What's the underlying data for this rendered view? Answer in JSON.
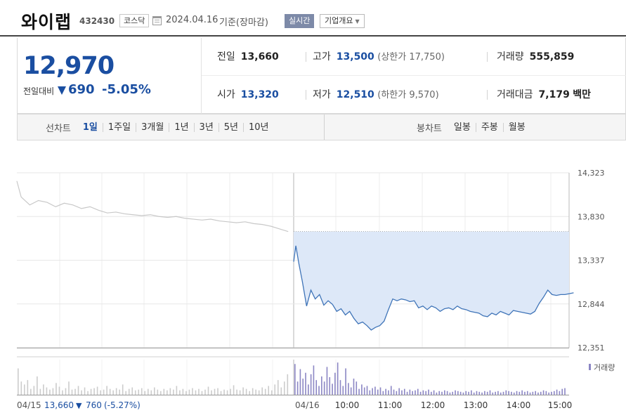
{
  "header": {
    "stock_name": "와이랩",
    "stock_code": "432430",
    "market": "코스닥",
    "date": "2024.04.16",
    "date_suffix": "기준(장마감)",
    "realtime_label": "실시간",
    "overview_label": "기업개요"
  },
  "quote": {
    "price": "12,970",
    "change_label": "전일대비",
    "change_value": "690",
    "change_pct": "-5.05%",
    "prev_close_label": "전일",
    "prev_close": "13,660",
    "high_label": "고가",
    "high": "13,500",
    "upper_limit_label": "상한가",
    "upper_limit": "17,750",
    "volume_label": "거래량",
    "volume": "555,859",
    "open_label": "시가",
    "open": "13,320",
    "low_label": "저가",
    "low": "12,510",
    "lower_limit_label": "하한가",
    "lower_limit": "9,570",
    "amount_label": "거래대금",
    "amount": "7,179",
    "amount_unit": "백만"
  },
  "tabs": {
    "line_label": "선차트",
    "line_items": [
      "1일",
      "1주일",
      "3개월",
      "1년",
      "3년",
      "5년",
      "10년"
    ],
    "line_active": 0,
    "candle_label": "봉차트",
    "candle_items": [
      "일봉",
      "주봉",
      "월봉"
    ]
  },
  "colors": {
    "price_line": "#3f74b8",
    "prev_day_line": "#c8c8c8",
    "fill": "#dde8f8",
    "volume_today": "#8b86c4",
    "volume_prev": "#cccccc",
    "blue": "#1a4ea1"
  },
  "chart_data": {
    "type": "line",
    "y_ticks": [
      "14,323",
      "13,830",
      "13,337",
      "12,844",
      "12,351"
    ],
    "ylim": [
      12351,
      14323
    ],
    "reference_price": 13660,
    "x_ticks": [
      "10:00",
      "11:00",
      "12:00",
      "13:00",
      "14:00",
      "15:00"
    ],
    "prev_day": {
      "date_label": "04/15",
      "close": "13,660",
      "change": "760",
      "change_pct": "(-5.27%)",
      "x": [
        0,
        0.1,
        0.3,
        0.5,
        0.7,
        0.9,
        1.1,
        1.3,
        1.5,
        1.7,
        1.9,
        2.1,
        2.3,
        2.5,
        2.7,
        2.9,
        3.1,
        3.3,
        3.5,
        3.7,
        3.9,
        4.1,
        4.3,
        4.5,
        4.7,
        4.9,
        5.1,
        5.3,
        5.5,
        5.7,
        5.9,
        6.1,
        6.3
      ],
      "values": [
        14230,
        14050,
        13960,
        14010,
        13990,
        13940,
        13980,
        13960,
        13920,
        13940,
        13900,
        13870,
        13880,
        13860,
        13850,
        13840,
        13850,
        13830,
        13820,
        13830,
        13810,
        13800,
        13790,
        13800,
        13780,
        13770,
        13760,
        13770,
        13750,
        13740,
        13720,
        13690,
        13660
      ]
    },
    "today": {
      "date_label": "04/16",
      "x": [
        0,
        0.05,
        0.12,
        0.2,
        0.3,
        0.4,
        0.5,
        0.6,
        0.7,
        0.8,
        0.9,
        1.0,
        1.1,
        1.2,
        1.3,
        1.4,
        1.5,
        1.6,
        1.7,
        1.8,
        1.9,
        2.0,
        2.1,
        2.2,
        2.3,
        2.4,
        2.5,
        2.6,
        2.7,
        2.8,
        2.9,
        3.0,
        3.1,
        3.2,
        3.3,
        3.4,
        3.5,
        3.6,
        3.7,
        3.8,
        3.9,
        4.0,
        4.1,
        4.2,
        4.3,
        4.4,
        4.5,
        4.6,
        4.7,
        4.8,
        4.9,
        5.0,
        5.1,
        5.2,
        5.3,
        5.4,
        5.5,
        5.6,
        5.7,
        5.8,
        5.9,
        6.0,
        6.1,
        6.2,
        6.3,
        6.4,
        6.5
      ],
      "values": [
        13320,
        13500,
        13300,
        13100,
        12820,
        13000,
        12900,
        12950,
        12830,
        12880,
        12840,
        12760,
        12790,
        12720,
        12760,
        12680,
        12620,
        12640,
        12600,
        12550,
        12580,
        12600,
        12650,
        12780,
        12900,
        12880,
        12900,
        12890,
        12870,
        12880,
        12800,
        12820,
        12780,
        12820,
        12800,
        12760,
        12790,
        12800,
        12780,
        12820,
        12790,
        12780,
        12760,
        12750,
        12740,
        12710,
        12700,
        12740,
        12720,
        12760,
        12740,
        12720,
        12770,
        12760,
        12750,
        12740,
        12730,
        12760,
        12850,
        12920,
        13000,
        12950,
        12940,
        12950,
        12950,
        12960,
        12970
      ]
    },
    "volume_label": "거래량",
    "volume_prev": [
      36,
      18,
      14,
      20,
      8,
      12,
      25,
      8,
      14,
      10,
      7,
      9,
      16,
      11,
      6,
      9,
      18,
      7,
      8,
      12,
      6,
      10,
      5,
      8,
      9,
      11,
      6,
      7,
      12,
      8,
      6,
      9,
      7,
      14,
      5,
      8,
      10,
      6,
      7,
      9,
      5,
      8,
      6,
      10,
      7,
      5,
      8,
      6,
      9,
      7,
      12,
      6,
      8,
      5,
      7,
      9,
      6,
      8,
      5,
      7,
      11,
      6,
      8,
      9,
      5,
      7,
      6,
      8,
      13,
      7,
      6,
      10,
      8,
      5,
      9,
      7,
      6,
      10,
      8,
      12,
      6,
      14,
      20,
      10,
      18,
      28
    ],
    "volume_today": [
      42,
      18,
      35,
      22,
      30,
      14,
      28,
      40,
      20,
      12,
      25,
      18,
      38,
      24,
      15,
      30,
      44,
      20,
      12,
      36,
      16,
      10,
      22,
      18,
      8,
      14,
      10,
      12,
      6,
      9,
      11,
      7,
      10,
      5,
      8,
      6,
      12,
      7,
      5,
      9,
      6,
      8,
      4,
      7,
      5,
      6,
      8,
      4,
      6,
      5,
      7,
      4,
      6,
      3,
      5,
      4,
      6,
      5,
      3,
      4,
      6,
      5,
      4,
      3,
      5,
      4,
      6,
      3,
      5,
      4,
      3,
      5,
      4,
      6,
      3,
      4,
      5,
      3,
      4,
      6,
      5,
      4,
      3,
      5,
      4,
      6,
      4,
      5,
      3,
      4,
      5,
      3,
      4,
      6,
      5,
      3,
      4,
      5,
      7,
      5,
      8,
      9
    ]
  }
}
